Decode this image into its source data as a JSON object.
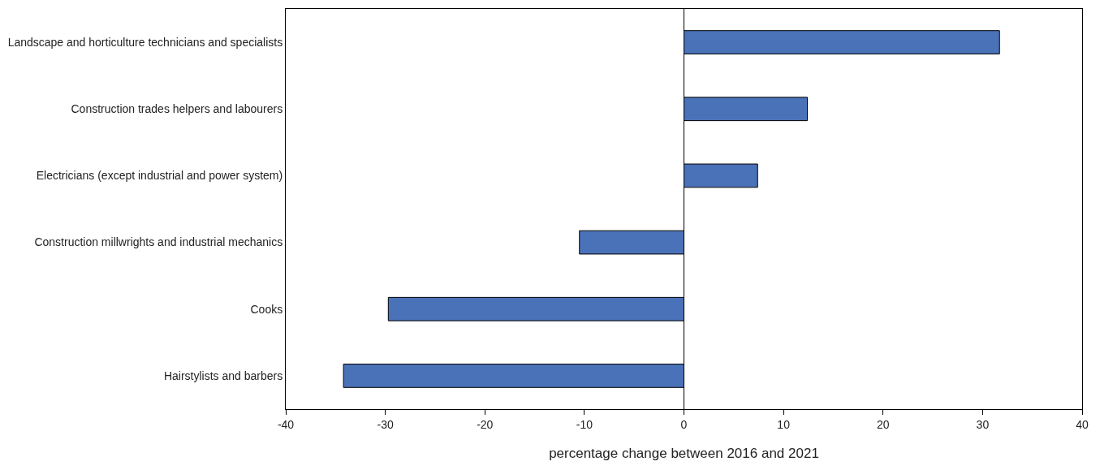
{
  "chart_data": {
    "type": "bar",
    "orientation": "horizontal",
    "xlabel": "percentage change between 2016 and 2021",
    "categories": [
      "Landscape and horticulture technicians and specialists",
      "Construction trades helpers and labourers",
      "Electricians (except industrial and power system)",
      "Construction millwrights and industrial mechanics",
      "Cooks",
      "Hairstylists and barbers"
    ],
    "values": [
      31.7,
      12.4,
      7.4,
      -10.5,
      -29.7,
      -34.2
    ],
    "color": "#4a72b8",
    "xlim": [
      -40,
      40
    ],
    "xticks": [
      -40,
      -30,
      -20,
      -10,
      0,
      10,
      20,
      30,
      40
    ],
    "ref_lines": [
      {
        "axis": "x",
        "value": 0,
        "color": "#000000"
      }
    ],
    "legend": false
  }
}
